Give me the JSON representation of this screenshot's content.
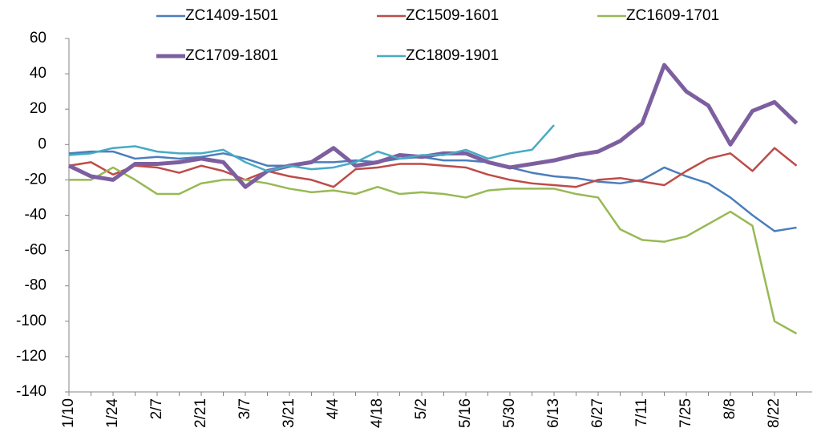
{
  "chart_data": {
    "type": "line",
    "categories": [
      "1/10",
      null,
      "1/24",
      null,
      "2/7",
      null,
      "2/21",
      null,
      "3/7",
      null,
      "3/21",
      null,
      "4/4",
      null,
      "4/18",
      null,
      "5/2",
      null,
      "5/16",
      null,
      "5/30",
      null,
      "6/13",
      null,
      "6/27",
      null,
      "7/11",
      null,
      "7/25",
      null,
      "8/8",
      null,
      "8/22",
      null
    ],
    "series": [
      {
        "name": "ZC1409-1501",
        "color": "#4a7ebb",
        "width": 2.5,
        "values": [
          -5,
          -4,
          -4,
          -8,
          -7,
          -8,
          -7,
          -5,
          -8,
          -12,
          -12,
          -10,
          -10,
          -9,
          -10,
          -8,
          -7,
          -9,
          -9,
          -10,
          -13,
          -16,
          -18,
          -19,
          -21,
          -22,
          -20,
          -13,
          -18,
          -22,
          -30,
          -40,
          -49,
          -47
        ]
      },
      {
        "name": "ZC1509-1601",
        "color": "#be4b48",
        "width": 2.5,
        "values": [
          -12,
          -10,
          -17,
          -12,
          -13,
          -16,
          -12,
          -15,
          -20,
          -15,
          -18,
          -20,
          -24,
          -14,
          -13,
          -11,
          -11,
          -12,
          -13,
          -17,
          -20,
          -22,
          -23,
          -24,
          -20,
          -19,
          -21,
          -23,
          -15,
          -8,
          -5,
          -15,
          -2,
          -12
        ]
      },
      {
        "name": "ZC1609-1701",
        "color": "#98b954",
        "width": 2.5,
        "values": [
          -20,
          -20,
          -13,
          -20,
          -28,
          -28,
          -22,
          -20,
          -20,
          -22,
          -25,
          -27,
          -26,
          -28,
          -24,
          -28,
          -27,
          -28,
          -30,
          -26,
          -25,
          -25,
          -25,
          -28,
          -30,
          -48,
          -54,
          -55,
          -52,
          -45,
          -38,
          -46,
          -100,
          -107
        ]
      },
      {
        "name": "ZC1709-1801",
        "color": "#7d5fa0",
        "width": 5,
        "values": [
          -12,
          -18,
          -20,
          -11,
          -11,
          -10,
          -8,
          -10,
          -24,
          -15,
          -12,
          -10,
          -2,
          -12,
          -10,
          -6,
          -7,
          -5,
          -5,
          -10,
          -13,
          -11,
          -9,
          -6,
          -4,
          2,
          12,
          45,
          30,
          22,
          0,
          19,
          24,
          12
        ]
      },
      {
        "name": "ZC1809-1901",
        "color": "#46aac5",
        "width": 2.5,
        "values": [
          -6,
          -5,
          -2,
          -1,
          -4,
          -5,
          -5,
          -3,
          -10,
          -15,
          -12,
          -14,
          -13,
          -10,
          -4,
          -8,
          -6,
          -6,
          -3,
          -8,
          -5,
          -3,
          11,
          null,
          null,
          null,
          null,
          null,
          null,
          null,
          null,
          null,
          null,
          null
        ]
      }
    ],
    "ylim": [
      -140,
      60
    ],
    "yticks": [
      -140,
      -120,
      -100,
      -80,
      -60,
      -40,
      -20,
      0,
      20,
      40,
      60
    ],
    "grid": false
  }
}
